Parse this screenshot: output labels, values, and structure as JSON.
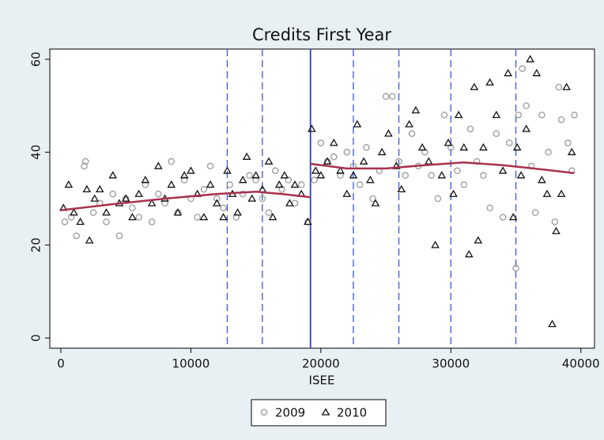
{
  "chart_data": {
    "type": "scatter",
    "title": "Credits First Year",
    "x_label": "ISEE",
    "xlim": [
      -850,
      41050
    ],
    "ylim": [
      -2.2,
      62.2
    ],
    "xticks": [
      0,
      10000,
      20000,
      30000,
      40000
    ],
    "yticks": [
      0,
      20,
      40,
      60
    ],
    "grid": false,
    "legend_position": "bottom",
    "threshold": {
      "x": 19200,
      "color": "#2a3fd6"
    },
    "cutoffs": {
      "x": [
        12800,
        15500,
        22500,
        26000,
        30000,
        35000
      ],
      "color": "#3d55d8"
    },
    "fit_lines": [
      {
        "color": "#a8324e",
        "x": [
          0,
          4000,
          8000,
          12000,
          15000,
          17000,
          19200
        ],
        "values": [
          27.5,
          28.8,
          30,
          31,
          31.5,
          31,
          30.3
        ]
      },
      {
        "color": "#a8324e",
        "x": [
          19200,
          22000,
          25000,
          28000,
          31000,
          34000,
          37000,
          39500
        ],
        "values": [
          37.5,
          36.5,
          36.5,
          37.2,
          37.8,
          37.2,
          36.3,
          35.5
        ]
      }
    ],
    "series": [
      {
        "name": "2009",
        "color": "#9a9a9a",
        "marker": "circle",
        "x": [
          300,
          800,
          1200,
          1800,
          1900,
          2500,
          3000,
          3500,
          4000,
          4500,
          5000,
          5500,
          6000,
          6500,
          7000,
          7500,
          8000,
          8500,
          9000,
          9500,
          10000,
          10500,
          11000,
          11500,
          12000,
          12500,
          13000,
          13500,
          14000,
          14500,
          15000,
          15500,
          16000,
          16500,
          17000,
          17500,
          18000,
          18500,
          19000,
          19500,
          20000,
          20500,
          21000,
          21500,
          22000,
          22500,
          23000,
          23500,
          24000,
          24500,
          25000,
          25500,
          26000,
          26500,
          27000,
          27500,
          28000,
          28500,
          29000,
          29500,
          30000,
          30500,
          31000,
          31500,
          32000,
          32500,
          33000,
          33500,
          34000,
          34500,
          35000,
          35200,
          35500,
          35800,
          36200,
          36500,
          37000,
          37500,
          38000,
          38300,
          38500,
          39000,
          39300,
          39500
        ],
        "values": [
          25,
          26,
          22,
          37,
          38,
          27,
          29,
          25,
          31,
          22,
          30,
          28,
          26,
          33,
          25,
          31,
          29,
          38,
          27,
          34,
          30,
          26,
          32,
          37,
          30,
          28,
          33,
          26,
          31,
          35,
          34,
          30,
          27,
          36,
          32,
          34,
          29,
          33,
          25,
          34,
          42,
          38,
          39,
          35,
          40,
          37,
          33,
          41,
          30,
          36,
          52,
          52,
          38,
          35,
          44,
          37,
          40,
          35,
          30,
          48,
          41,
          36,
          33,
          45,
          38,
          35,
          28,
          44,
          26,
          42,
          15,
          48,
          58,
          50,
          37,
          27,
          48,
          40,
          25,
          54,
          47,
          42,
          36,
          48
        ]
      },
      {
        "name": "2010",
        "color": "#111111",
        "marker": "triangle",
        "x": [
          200,
          600,
          1000,
          1500,
          2000,
          2200,
          2600,
          3000,
          3500,
          4000,
          4500,
          5000,
          5500,
          6000,
          6500,
          7000,
          7500,
          8000,
          8500,
          9000,
          9500,
          10000,
          10500,
          11000,
          11500,
          12000,
          12500,
          12800,
          13200,
          13600,
          14000,
          14300,
          14700,
          15000,
          15500,
          16000,
          16300,
          16800,
          17200,
          17600,
          18000,
          18500,
          19000,
          19300,
          19600,
          20000,
          20500,
          21000,
          21500,
          22000,
          22500,
          22800,
          23300,
          23800,
          24200,
          24700,
          25200,
          25800,
          26200,
          26800,
          27300,
          27800,
          28300,
          28800,
          29300,
          29800,
          30200,
          30600,
          31000,
          31400,
          31800,
          32100,
          32500,
          33000,
          33500,
          34000,
          34400,
          34800,
          35100,
          35400,
          35800,
          36100,
          36600,
          37000,
          37400,
          37800,
          38100,
          38500,
          38900,
          39300
        ],
        "values": [
          28,
          33,
          27,
          25,
          32,
          21,
          30,
          32,
          27,
          35,
          29,
          30,
          26,
          31,
          34,
          29,
          37,
          30,
          33,
          27,
          35,
          36,
          31,
          26,
          33,
          29,
          26,
          36,
          31,
          27,
          34,
          39,
          30,
          35,
          32,
          38,
          26,
          33,
          35,
          29,
          33,
          31,
          25,
          45,
          36,
          35,
          38,
          42,
          36,
          31,
          35,
          46,
          38,
          34,
          29,
          40,
          44,
          37,
          32,
          46,
          49,
          41,
          38,
          20,
          35,
          42,
          31,
          48,
          41,
          18,
          54,
          21,
          41,
          55,
          48,
          36,
          57,
          26,
          41,
          35,
          45,
          60,
          57,
          34,
          31,
          3,
          23,
          31,
          54,
          40
        ]
      }
    ]
  }
}
